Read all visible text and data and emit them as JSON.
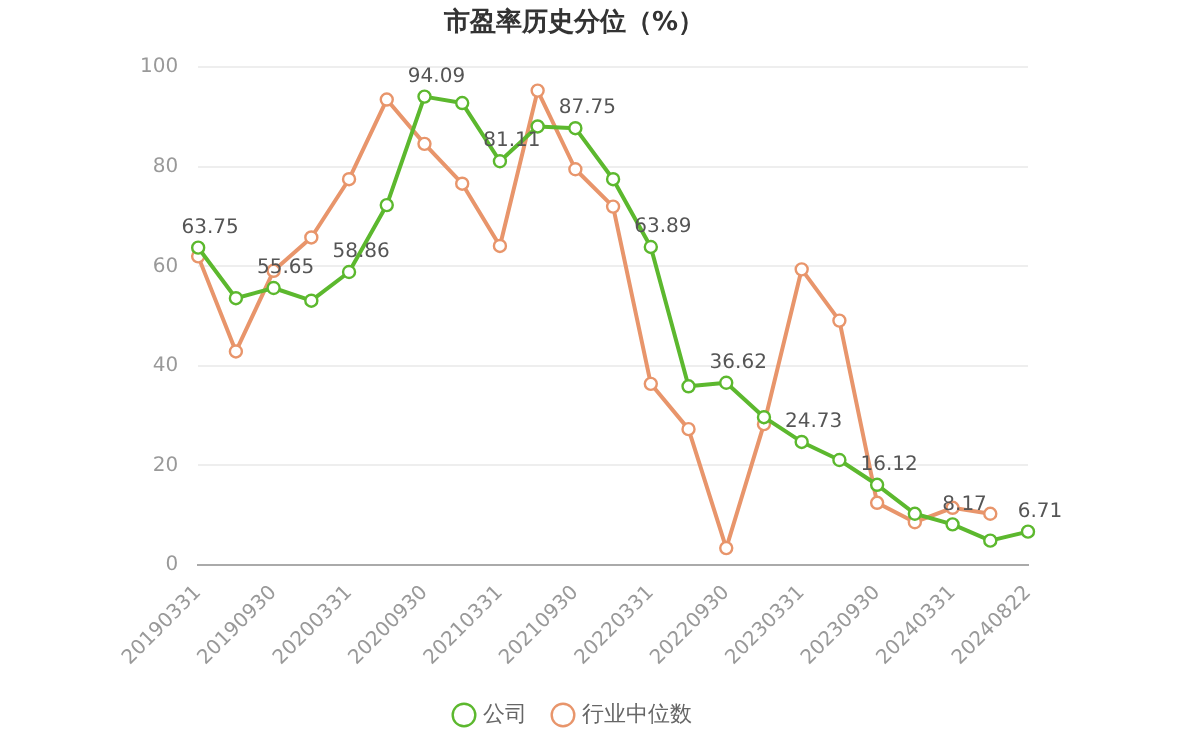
{
  "chart_data": {
    "type": "line",
    "title": "市盈率历史分位（%）",
    "categories": [
      "20190331",
      null,
      "20190930",
      null,
      "20200331",
      null,
      "20200930",
      null,
      "20210331",
      null,
      "20210930",
      null,
      "20220331",
      null,
      "20220930",
      null,
      "20230331",
      null,
      "20230930",
      null,
      "20240331",
      null,
      "20240822"
    ],
    "series": [
      {
        "name": "公司",
        "color": "#5cb82e",
        "values": [
          63.75,
          53.6,
          55.65,
          53.1,
          58.86,
          72.3,
          94.09,
          92.8,
          81.11,
          88.1,
          87.75,
          77.5,
          63.89,
          35.9,
          36.62,
          29.7,
          24.73,
          21.1,
          16.12,
          10.3,
          8.17,
          4.9,
          6.71
        ],
        "value_labels": [
          "63.75",
          null,
          "55.65",
          null,
          "58.86",
          null,
          "94.09",
          null,
          "81.11",
          null,
          "87.75",
          null,
          "63.89",
          null,
          "36.62",
          null,
          "24.73",
          null,
          "16.12",
          null,
          "8.17",
          null,
          "6.71"
        ]
      },
      {
        "name": "行业中位数",
        "color": "#e8956b",
        "values": [
          62.0,
          42.9,
          59.1,
          65.8,
          77.5,
          93.5,
          84.6,
          76.6,
          64.1,
          95.3,
          79.5,
          72.0,
          36.4,
          27.3,
          3.4,
          28.3,
          59.4,
          49.1,
          12.5,
          8.6,
          11.5,
          10.3,
          null
        ]
      }
    ],
    "ylim": [
      0,
      100
    ],
    "yticks": [
      0,
      20,
      40,
      60,
      80,
      100
    ],
    "grid": "y",
    "legend": "bottom",
    "marker": "circle",
    "line_style": "solid"
  }
}
